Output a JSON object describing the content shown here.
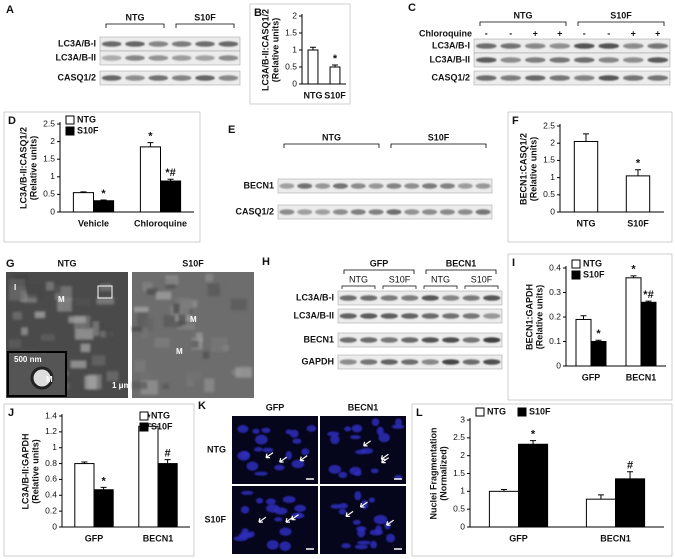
{
  "chart_data": [
    {
      "type": "bar",
      "panel": "B",
      "ylabel": [
        "LC3A/B-II:CASQ1/2",
        "(Relative units)"
      ],
      "categories": [
        "NTG",
        "S10F"
      ],
      "values": [
        1,
        0.5
      ],
      "errors": [
        0.08,
        0.06
      ],
      "significance": [
        null,
        "*"
      ],
      "color": "#ffffff",
      "ylim": [
        0,
        2
      ],
      "yticks": [
        0,
        0.5,
        1,
        1.5,
        2
      ]
    },
    {
      "type": "bar",
      "panel": "D",
      "ylabel": [
        "LC3A/B-II:CASQ1/2",
        "(Relative units)"
      ],
      "categories": [
        "Vehicle",
        "Chloroquine"
      ],
      "series": [
        {
          "name": "NTG",
          "color": "#ffffff",
          "values": [
            0.55,
            1.85
          ],
          "errors": [
            0.02,
            0.12
          ],
          "significance": [
            null,
            "*"
          ]
        },
        {
          "name": "S10F",
          "color": "#000000",
          "values": [
            0.32,
            0.88
          ],
          "errors": [
            0.02,
            0.05
          ],
          "significance": [
            "*",
            "*#"
          ]
        }
      ],
      "legend": "top-left",
      "ylim": [
        0,
        2.5
      ],
      "yticks": [
        0,
        0.5,
        1,
        1.5,
        2,
        2.5
      ]
    },
    {
      "type": "bar",
      "panel": "F",
      "ylabel": [
        "BECN1:CASQ1/2",
        "(Relative units)"
      ],
      "categories": [
        "NTG",
        "S10F"
      ],
      "values": [
        2.05,
        1.05
      ],
      "errors": [
        0.22,
        0.18
      ],
      "significance": [
        null,
        "*"
      ],
      "color": "#ffffff",
      "ylim": [
        0,
        2.5
      ],
      "yticks": [
        0,
        0.5,
        1,
        1.5,
        2,
        2.5
      ]
    },
    {
      "type": "bar",
      "panel": "I",
      "ylabel": [
        "BECN1:GAPDH",
        "(Relative units)"
      ],
      "categories": [
        "GFP",
        "BECN1"
      ],
      "series": [
        {
          "name": "NTG",
          "color": "#ffffff",
          "values": [
            0.19,
            0.36
          ],
          "errors": [
            0.015,
            0.008
          ],
          "significance": [
            null,
            "*"
          ]
        },
        {
          "name": "S10F",
          "color": "#000000",
          "values": [
            0.1,
            0.26
          ],
          "errors": [
            0.005,
            0.005
          ],
          "significance": [
            "*",
            "*#"
          ]
        }
      ],
      "legend": "top-left",
      "ylim": [
        0,
        0.4
      ],
      "yticks": [
        0,
        0.1,
        0.2,
        0.3,
        0.4
      ]
    },
    {
      "type": "bar",
      "panel": "J",
      "ylabel": [
        "LC3A/B-II:GAPDH",
        "(Relative units)"
      ],
      "categories": [
        "GFP",
        "BECN1"
      ],
      "series": [
        {
          "name": "NTG",
          "color": "#ffffff",
          "values": [
            0.8,
            1.27
          ],
          "errors": [
            0.02,
            0.03
          ],
          "significance": [
            null,
            "*"
          ]
        },
        {
          "name": "S10F",
          "color": "#000000",
          "values": [
            0.47,
            0.8
          ],
          "errors": [
            0.03,
            0.05
          ],
          "significance": [
            "*",
            "#"
          ]
        }
      ],
      "legend": "top-right",
      "ylim": [
        0,
        1.4
      ],
      "yticks": [
        0,
        0.2,
        0.4,
        0.6,
        0.8,
        1,
        1.2,
        1.4
      ]
    },
    {
      "type": "bar",
      "panel": "L",
      "ylabel": [
        "Nuclei Fragmentation",
        "(Normalized)"
      ],
      "categories": [
        "GFP",
        "BECN1"
      ],
      "series": [
        {
          "name": "NTG",
          "color": "#ffffff",
          "values": [
            1,
            0.78
          ],
          "errors": [
            0.05,
            0.12
          ],
          "significance": [
            null,
            null
          ]
        },
        {
          "name": "S10F",
          "color": "#000000",
          "values": [
            2.32,
            1.35
          ],
          "errors": [
            0.1,
            0.2
          ],
          "significance": [
            "*",
            "#"
          ]
        }
      ],
      "legend": "top",
      "ylim": [
        0,
        3
      ],
      "yticks": [
        0,
        0.5,
        1,
        1.5,
        2,
        2.5,
        3
      ]
    }
  ],
  "blots": {
    "A": {
      "letter": "A",
      "groups": [
        "NTG",
        "S10F"
      ],
      "rows": [
        "LC3A/B-I",
        "LC3A/B-II",
        "CASQ1/2"
      ]
    },
    "C": {
      "letter": "C",
      "groups": [
        "NTG",
        "S10F"
      ],
      "treatment": {
        "label": "Chloroquine",
        "signs": [
          "-",
          "-",
          "+",
          "+",
          "-",
          "-",
          "+",
          "+"
        ]
      },
      "rows": [
        "LC3A/B-I",
        "LC3A/B-II",
        "CASQ1/2"
      ]
    },
    "E": {
      "letter": "E",
      "groups": [
        "NTG",
        "S10F"
      ],
      "rows": [
        "BECN1",
        "CASQ1/2"
      ]
    },
    "H": {
      "letter": "H",
      "groups": [
        "GFP",
        "BECN1"
      ],
      "subgroups": [
        "NTG",
        "S10F",
        "NTG",
        "S10F"
      ],
      "rows": [
        "LC3A/B-I",
        "LC3A/B-II",
        "BECN1",
        "GAPDH"
      ]
    }
  },
  "micrographs": {
    "letter": "G",
    "images": [
      "NTG",
      "S10F"
    ],
    "labels": [
      "I",
      "M",
      "M",
      "M",
      "M",
      "1 μm",
      "500 nm"
    ]
  },
  "nuclei": {
    "letter": "K",
    "columns": [
      "GFP",
      "BECN1"
    ],
    "rows": [
      "NTG",
      "S10F"
    ]
  }
}
